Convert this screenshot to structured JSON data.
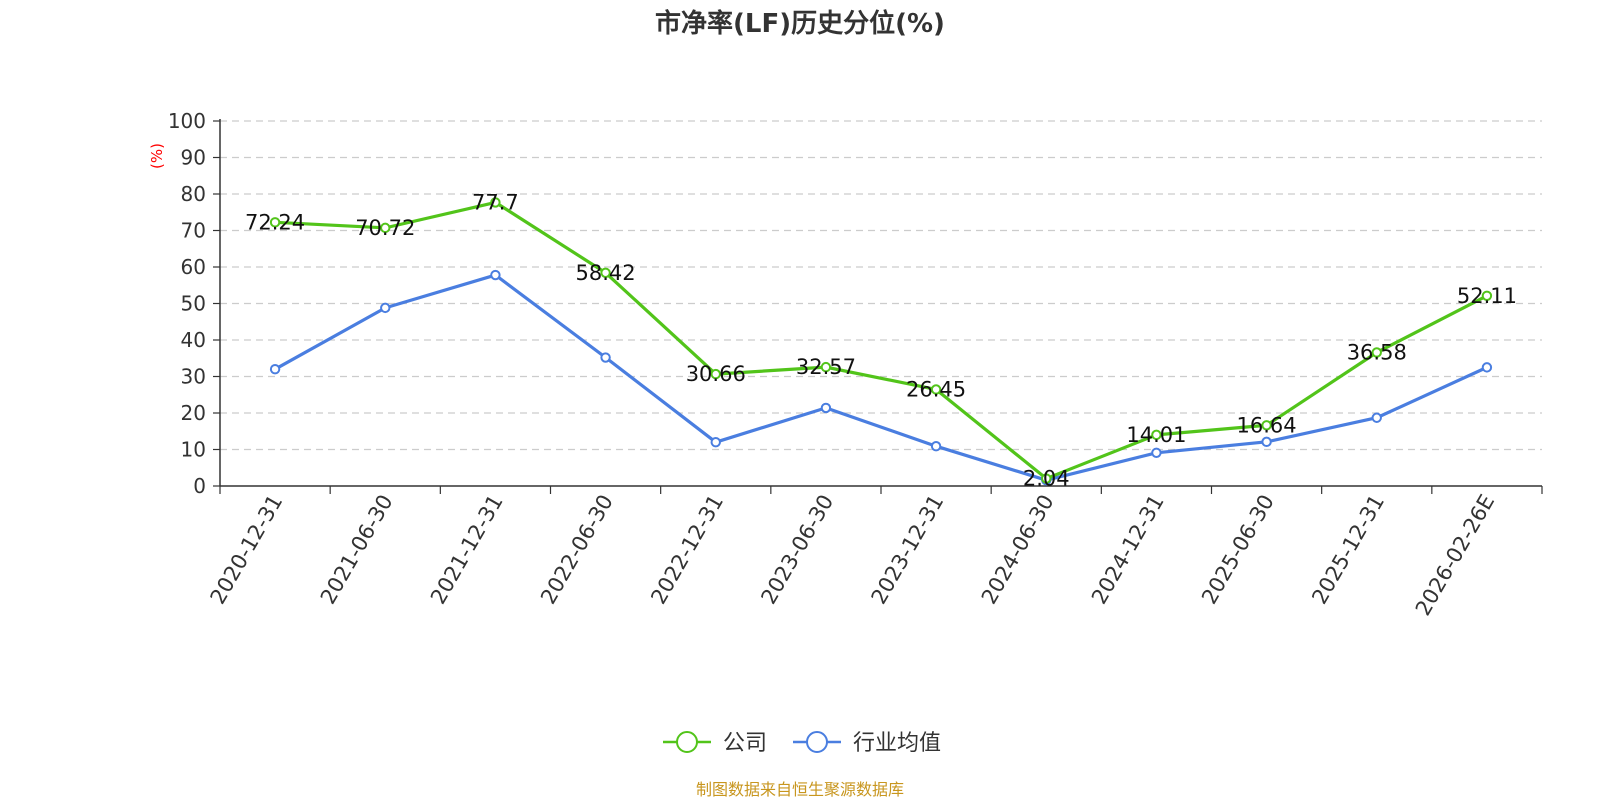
{
  "chart_data": {
    "type": "line",
    "title": "市净率(LF)历史分位(%)",
    "ylabel": "(%)",
    "xlabel": "",
    "ylim": [
      0,
      100
    ],
    "yticks": [
      0,
      10,
      20,
      30,
      40,
      50,
      60,
      70,
      80,
      90,
      100
    ],
    "grid": true,
    "legend_position": "bottom-center",
    "categories": [
      "2020-12-31",
      "2021-06-30",
      "2021-12-31",
      "2022-06-30",
      "2022-12-31",
      "2023-06-30",
      "2023-12-31",
      "2024-06-30",
      "2024-12-31",
      "2025-06-30",
      "2025-12-31",
      "2026-02-26E"
    ],
    "series": [
      {
        "name": "公司",
        "color": "#52c41a",
        "values": [
          72.24,
          70.72,
          77.7,
          58.42,
          30.66,
          32.57,
          26.45,
          2.04,
          14.01,
          16.64,
          36.58,
          52.11
        ],
        "labels": [
          "72.24",
          "70.72",
          "77.7",
          "58.42",
          "30.66",
          "32.57",
          "26.45",
          "2.04",
          "14.01",
          "16.64",
          "36.58",
          "52.11"
        ]
      },
      {
        "name": "行业均值",
        "color": "#4a7ee0",
        "values": [
          32.0,
          48.8,
          57.8,
          35.2,
          12.0,
          21.4,
          10.9,
          1.6,
          9.1,
          12.1,
          18.7,
          32.5
        ]
      }
    ],
    "source": "制图数据来自恒生聚源数据库",
    "source_color": "#c8961e"
  }
}
